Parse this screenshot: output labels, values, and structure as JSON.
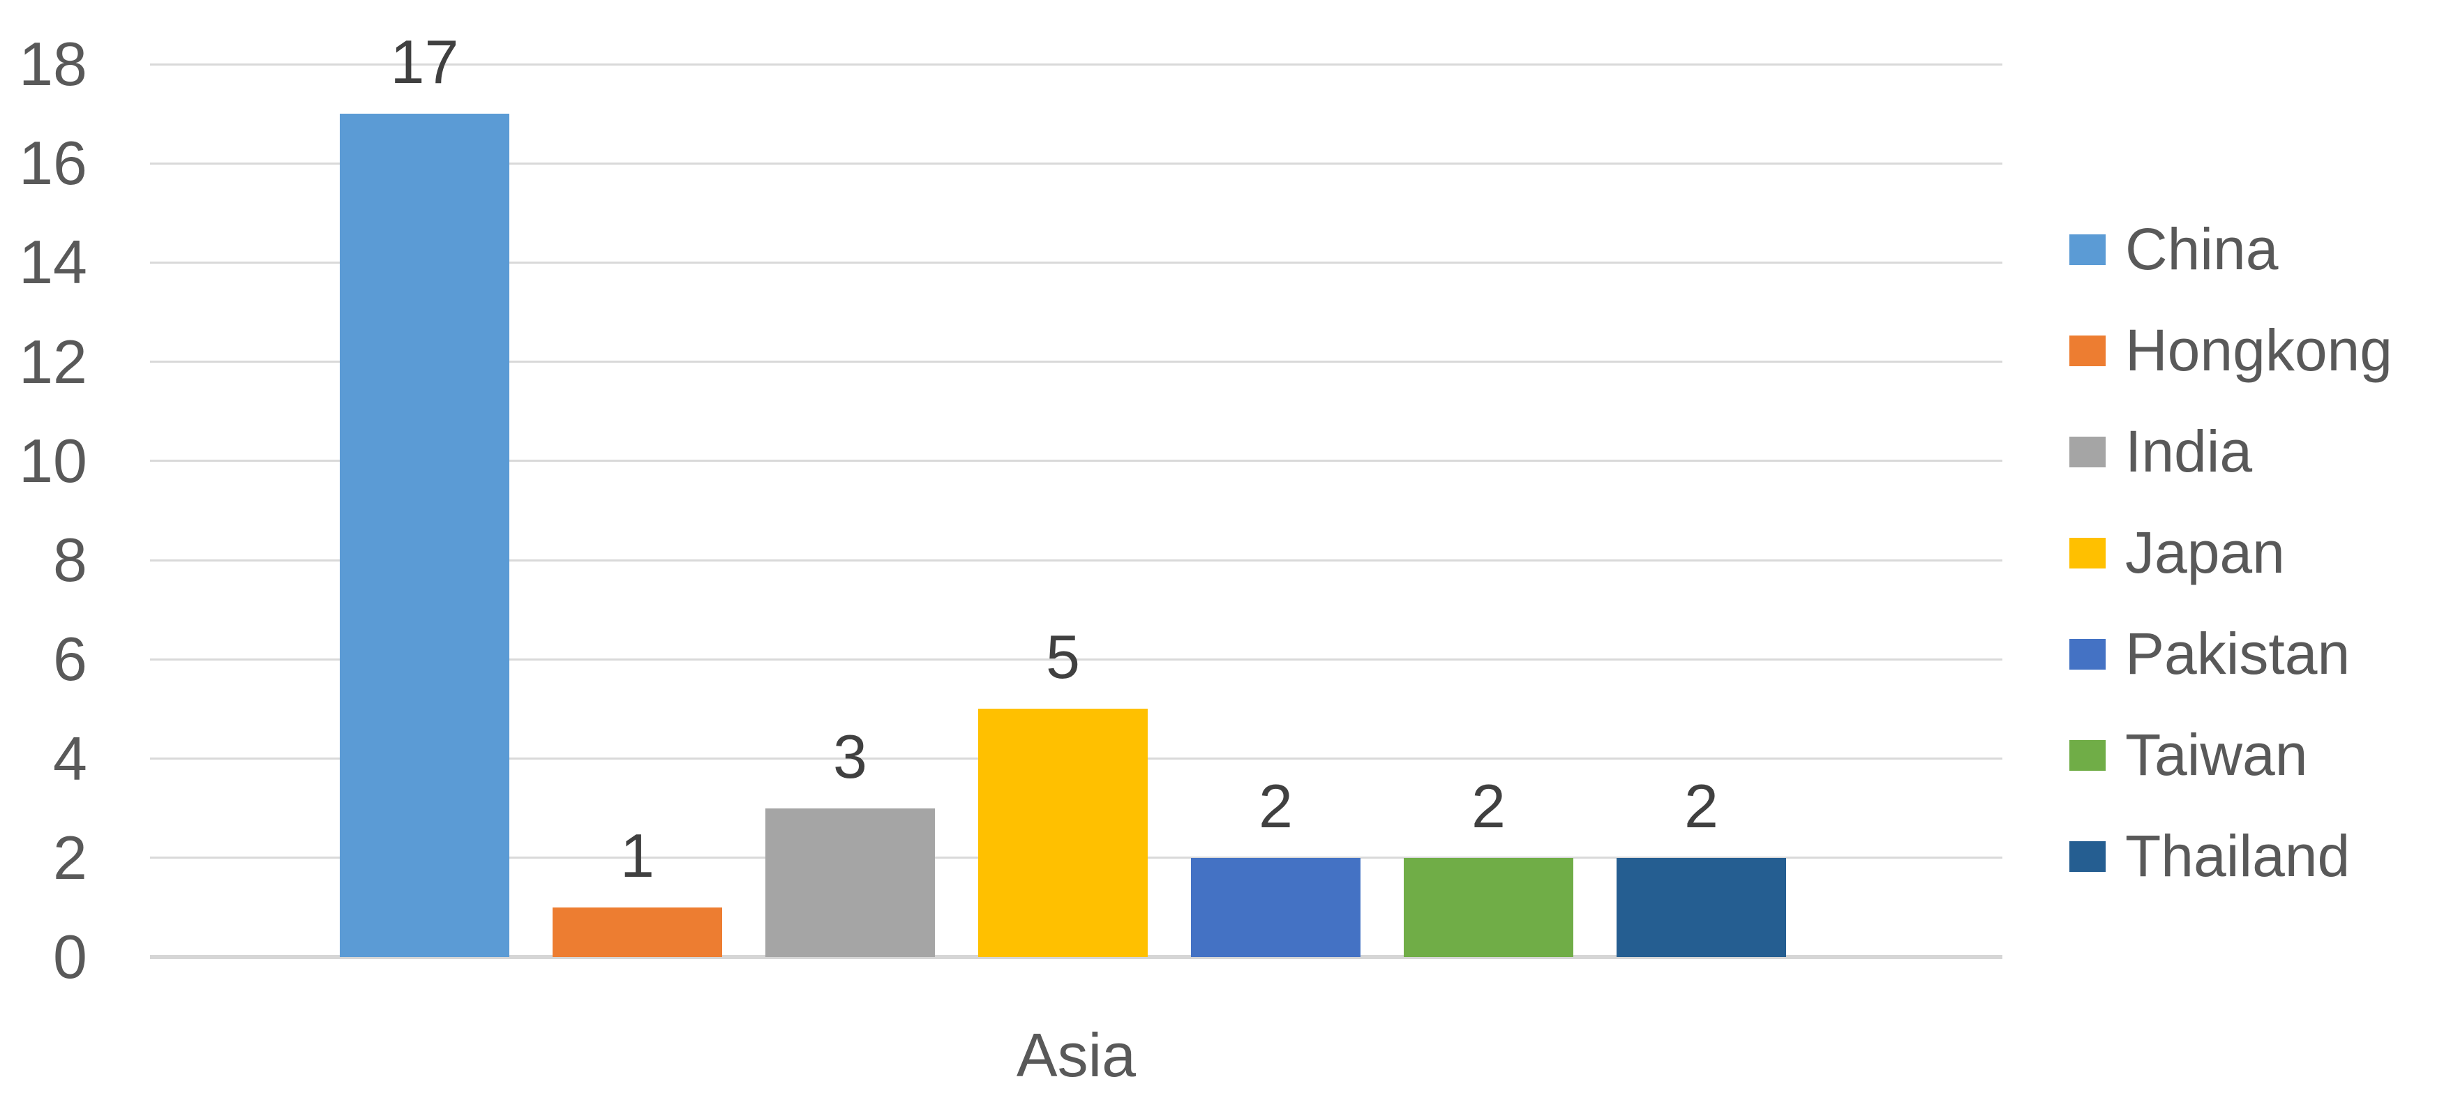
{
  "chart_data": {
    "type": "bar",
    "title": "",
    "xlabel": "Asia",
    "ylabel": "",
    "categories": [
      "Asia"
    ],
    "series": [
      {
        "name": "China",
        "value": 17,
        "color": "#5B9BD5"
      },
      {
        "name": "Hongkong",
        "value": 1,
        "color": "#ED7D31"
      },
      {
        "name": "India",
        "value": 3,
        "color": "#A5A5A5"
      },
      {
        "name": "Japan",
        "value": 5,
        "color": "#FFC000"
      },
      {
        "name": "Pakistan",
        "value": 2,
        "color": "#4472C4"
      },
      {
        "name": "Taiwan",
        "value": 2,
        "color": "#70AD47"
      },
      {
        "name": "Thailand",
        "value": 2,
        "color": "#255E91"
      }
    ],
    "data_labels_shown": true,
    "ylim": [
      0,
      18
    ],
    "ytick_step": 2,
    "y_ticks": [
      0,
      2,
      4,
      6,
      8,
      10,
      12,
      14,
      16,
      18
    ],
    "grid": true,
    "legend_position": "right",
    "legend_entries": [
      "China",
      "Hongkong",
      "India",
      "Japan",
      "Pakistan",
      "Taiwan",
      "Thailand"
    ],
    "colors": {
      "gridline": "#D9D9D9",
      "baseline": "#D6D6D6",
      "axis_text": "#595959",
      "data_label_text": "#404040",
      "background": "#FFFFFF"
    }
  }
}
